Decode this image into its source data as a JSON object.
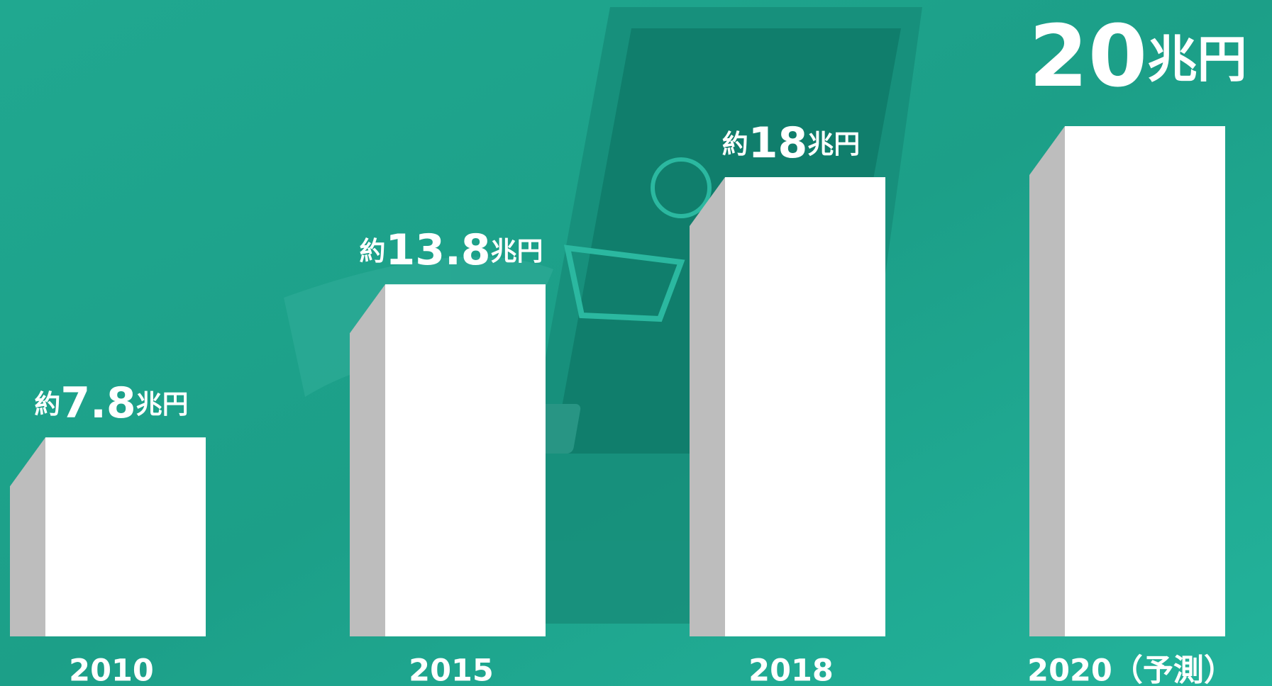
{
  "chart_data": {
    "type": "bar",
    "categories": [
      "2010",
      "2015",
      "2018",
      "2020（予測）"
    ],
    "values": [
      7.8,
      13.8,
      18,
      20
    ],
    "value_labels": [
      "約7.8兆円",
      "約13.8兆円",
      "約18兆円",
      "20兆円"
    ],
    "color": "#ffffff",
    "side_color": "#bdbdbd"
  }
}
